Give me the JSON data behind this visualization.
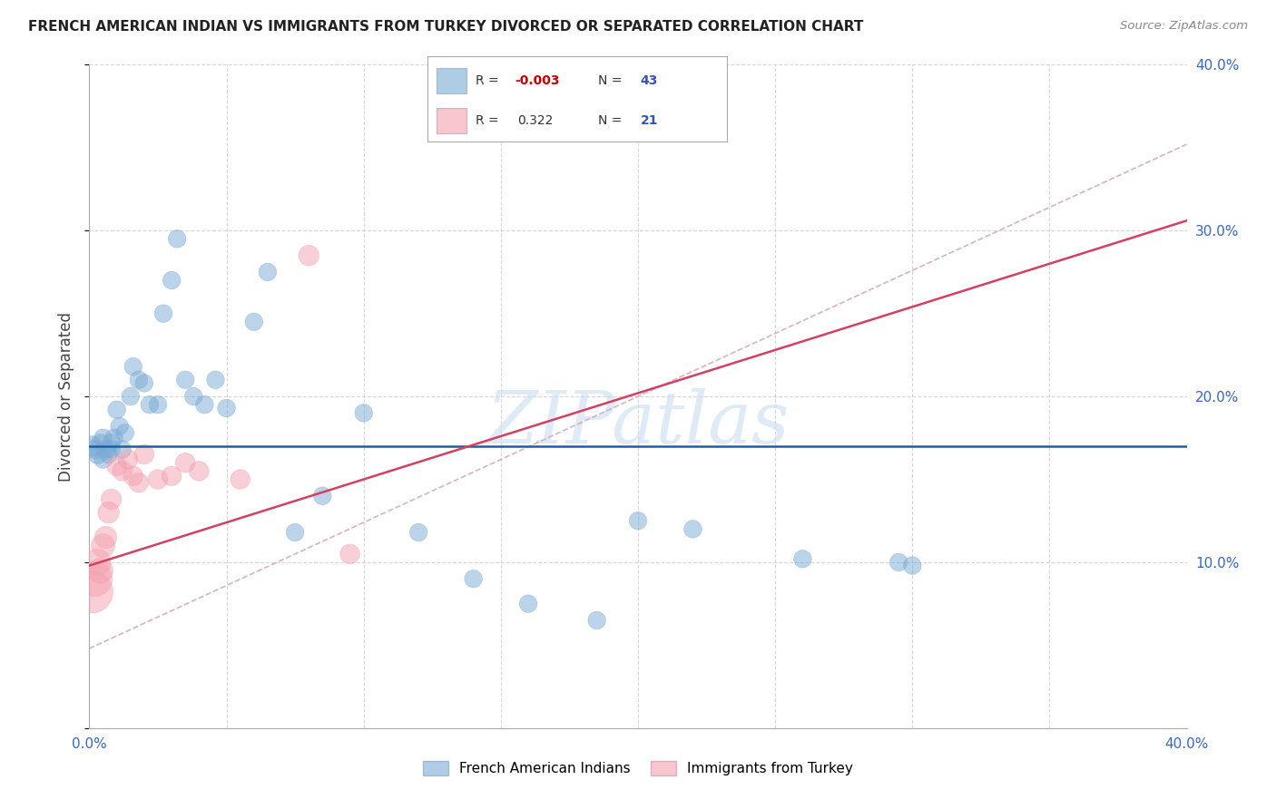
{
  "title": "FRENCH AMERICAN INDIAN VS IMMIGRANTS FROM TURKEY DIVORCED OR SEPARATED CORRELATION CHART",
  "source": "Source: ZipAtlas.com",
  "ylabel": "Divorced or Separated",
  "xlim": [
    0.0,
    0.4
  ],
  "ylim": [
    0.0,
    0.4
  ],
  "background_color": "#ffffff",
  "grid_color": "#cccccc",
  "watermark_text": "ZIPatlas",
  "blue_color": "#7aaad4",
  "pink_color": "#f4a0b0",
  "blue_line_color": "#1a5fa8",
  "pink_line_color": "#d44060",
  "dashed_line_color": "#d4aab8",
  "legend_R_blue": "-0.003",
  "legend_N_blue": "43",
  "legend_R_pink": "0.322",
  "legend_N_pink": "21",
  "blue_trend_y": 0.17,
  "pink_trend_intercept": 0.098,
  "pink_trend_slope": 0.52,
  "dashed_trend_intercept": 0.048,
  "dashed_trend_slope": 0.76,
  "blue_x": [
    0.001,
    0.002,
    0.003,
    0.004,
    0.005,
    0.005,
    0.006,
    0.007,
    0.008,
    0.008,
    0.009,
    0.01,
    0.011,
    0.012,
    0.013,
    0.015,
    0.016,
    0.018,
    0.02,
    0.022,
    0.025,
    0.027,
    0.03,
    0.032,
    0.035,
    0.038,
    0.042,
    0.046,
    0.05,
    0.06,
    0.065,
    0.075,
    0.085,
    0.1,
    0.12,
    0.14,
    0.16,
    0.185,
    0.2,
    0.22,
    0.26,
    0.295,
    0.3
  ],
  "blue_y": [
    0.17,
    0.168,
    0.165,
    0.172,
    0.162,
    0.175,
    0.168,
    0.165,
    0.172,
    0.168,
    0.175,
    0.192,
    0.182,
    0.168,
    0.178,
    0.2,
    0.218,
    0.21,
    0.208,
    0.195,
    0.195,
    0.25,
    0.27,
    0.295,
    0.21,
    0.2,
    0.195,
    0.21,
    0.193,
    0.245,
    0.275,
    0.118,
    0.14,
    0.19,
    0.118,
    0.09,
    0.075,
    0.065,
    0.125,
    0.12,
    0.102,
    0.1,
    0.098
  ],
  "blue_sizes": [
    120,
    100,
    100,
    90,
    90,
    90,
    90,
    90,
    90,
    90,
    90,
    90,
    90,
    90,
    90,
    90,
    90,
    90,
    90,
    90,
    90,
    90,
    90,
    90,
    90,
    90,
    90,
    90,
    90,
    90,
    90,
    90,
    90,
    90,
    90,
    90,
    90,
    90,
    90,
    90,
    90,
    90,
    90
  ],
  "pink_x": [
    0.001,
    0.002,
    0.003,
    0.004,
    0.005,
    0.006,
    0.007,
    0.008,
    0.01,
    0.012,
    0.014,
    0.016,
    0.018,
    0.02,
    0.025,
    0.03,
    0.035,
    0.04,
    0.055,
    0.08,
    0.095
  ],
  "pink_y": [
    0.082,
    0.09,
    0.1,
    0.095,
    0.11,
    0.115,
    0.13,
    0.138,
    0.158,
    0.155,
    0.162,
    0.152,
    0.148,
    0.165,
    0.15,
    0.152,
    0.16,
    0.155,
    0.15,
    0.285,
    0.105
  ],
  "pink_sizes": [
    500,
    350,
    200,
    180,
    160,
    140,
    130,
    120,
    110,
    110,
    110,
    110,
    110,
    110,
    110,
    110,
    110,
    110,
    110,
    120,
    110
  ]
}
